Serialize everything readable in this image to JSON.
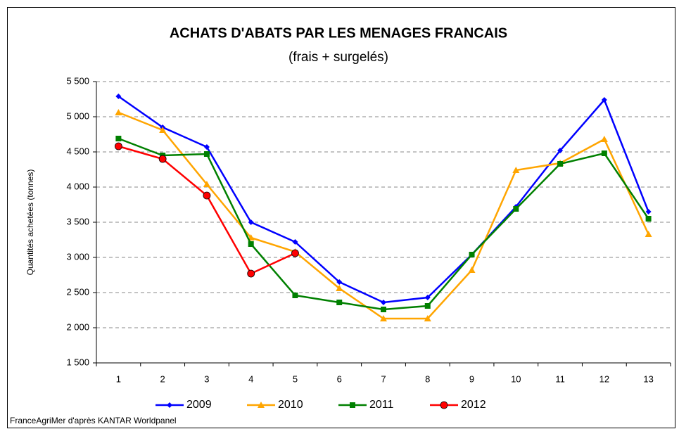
{
  "chart_data": {
    "type": "line",
    "title": "ACHATS D'ABATS PAR LES MENAGES FRANCAIS",
    "subtitle": "(frais + surgelés)",
    "y_label": "Quantités achetées (tonnes)",
    "source": "FranceAgriMer d'après KANTAR Worldpanel",
    "categories": [
      "1",
      "2",
      "3",
      "4",
      "5",
      "6",
      "7",
      "8",
      "9",
      "10",
      "11",
      "12",
      "13"
    ],
    "series": [
      {
        "name": "2009",
        "color": "#0000ff",
        "marker": "diamond",
        "values": [
          5290,
          4850,
          4570,
          3500,
          3220,
          2650,
          2360,
          2430,
          3040,
          3720,
          4520,
          5240,
          3650
        ]
      },
      {
        "name": "2010",
        "color": "#ffa500",
        "marker": "triangle",
        "values": [
          5060,
          4810,
          4040,
          3280,
          3080,
          2560,
          2130,
          2130,
          2820,
          4240,
          4340,
          4680,
          3330
        ]
      },
      {
        "name": "2011",
        "color": "#008000",
        "marker": "square",
        "values": [
          4690,
          4450,
          4470,
          3190,
          2460,
          2360,
          2260,
          2310,
          3040,
          3690,
          4330,
          4480,
          3550
        ]
      },
      {
        "name": "2012",
        "color": "#ff0000",
        "marker": "circle",
        "values": [
          4580,
          4400,
          3880,
          2770,
          3060,
          null,
          null,
          null,
          null,
          null,
          null,
          null,
          null
        ]
      }
    ],
    "ylim": [
      1500,
      5500
    ],
    "yticks": [
      {
        "value": 1500,
        "label": "1 500"
      },
      {
        "value": 2000,
        "label": "2 000"
      },
      {
        "value": 2500,
        "label": "2 500"
      },
      {
        "value": 3000,
        "label": "3 000"
      },
      {
        "value": 3500,
        "label": "3 500"
      },
      {
        "value": 4000,
        "label": "4 000"
      },
      {
        "value": 4500,
        "label": "4 500"
      },
      {
        "value": 5000,
        "label": "5 000"
      },
      {
        "value": 5500,
        "label": "5 500"
      }
    ],
    "grid": true,
    "legend": "bottom"
  }
}
